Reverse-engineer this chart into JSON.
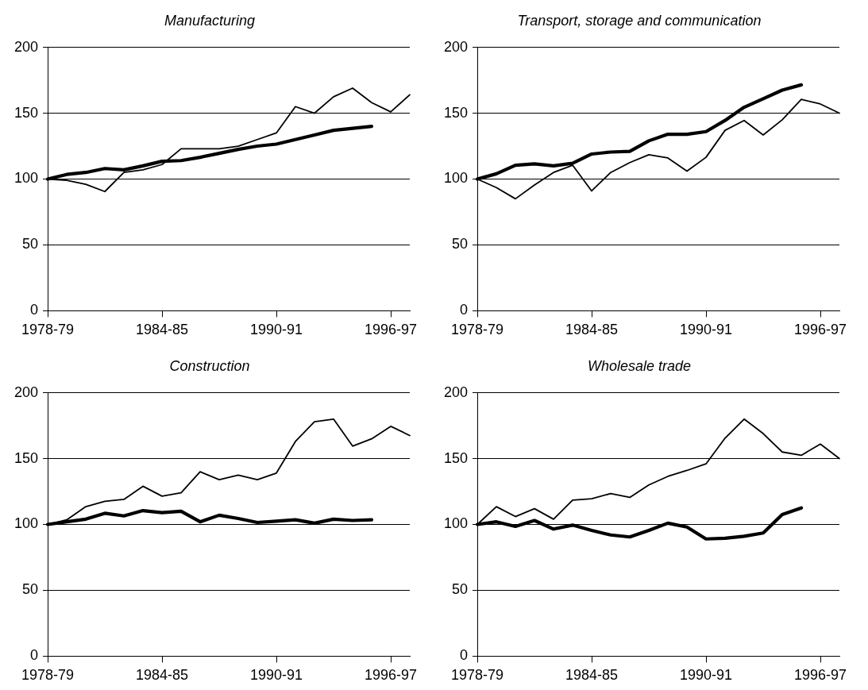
{
  "chart_data": [
    {
      "type": "line",
      "title": "Manufacturing",
      "categories": [
        "1978-79",
        null,
        null,
        null,
        null,
        null,
        "1984-85",
        null,
        null,
        null,
        null,
        null,
        "1990-91",
        null,
        null,
        null,
        null,
        null,
        "1996-97",
        null
      ],
      "ylim": [
        0,
        200
      ],
      "yticks": [
        0,
        50,
        100,
        150,
        200
      ],
      "grid": "y",
      "series": [
        {
          "color": "#000000",
          "values": [
            100,
            99,
            96,
            90.5,
            105,
            107,
            111,
            123,
            123,
            123,
            125,
            130,
            135,
            155,
            150,
            162.5,
            169,
            158,
            151,
            164
          ]
        },
        {
          "color": "#000000",
          "values": [
            100,
            103.5,
            105,
            108,
            107,
            110,
            113.5,
            114,
            116.5,
            119.5,
            122.5,
            125,
            126.5,
            130,
            133.5,
            137,
            138.5,
            140,
            null,
            null
          ]
        }
      ]
    },
    {
      "type": "line",
      "title": "Transport, storage and communication",
      "categories": [
        "1978-79",
        null,
        null,
        null,
        null,
        null,
        "1984-85",
        null,
        null,
        null,
        null,
        null,
        "1990-91",
        null,
        null,
        null,
        null,
        null,
        "1996-97",
        null
      ],
      "ylim": [
        0,
        200
      ],
      "yticks": [
        0,
        50,
        100,
        150,
        200
      ],
      "grid": "y",
      "series": [
        {
          "color": "#000000",
          "values": [
            100,
            93.5,
            85,
            95.5,
            105,
            110.5,
            91,
            105,
            112.5,
            118.5,
            116,
            106,
            116.5,
            137,
            144.5,
            133.5,
            145,
            160.5,
            157,
            150
          ]
        },
        {
          "color": "#000000",
          "values": [
            100,
            104,
            110.5,
            111.5,
            110,
            112,
            119,
            120.5,
            121,
            129,
            134,
            134,
            136,
            144.5,
            154.5,
            161,
            167.5,
            171.5,
            null,
            null
          ]
        }
      ]
    },
    {
      "type": "line",
      "title": "Construction",
      "categories": [
        "1978-79",
        null,
        null,
        null,
        null,
        null,
        "1984-85",
        null,
        null,
        null,
        null,
        null,
        "1990-91",
        null,
        null,
        null,
        null,
        null,
        "1996-97",
        null
      ],
      "ylim": [
        0,
        200
      ],
      "yticks": [
        0,
        50,
        100,
        150,
        200
      ],
      "grid": "y",
      "series": [
        {
          "color": "#000000",
          "values": [
            100,
            103.5,
            113.5,
            117.5,
            119,
            129,
            121.5,
            124,
            140,
            134,
            137.5,
            134,
            139,
            163,
            178,
            180,
            159.5,
            165,
            174.5,
            167.5
          ]
        },
        {
          "color": "#000000",
          "values": [
            100,
            102,
            104,
            108.5,
            106.5,
            110.5,
            109,
            110,
            102,
            107,
            104.5,
            101.5,
            102.5,
            103.5,
            101,
            104,
            103,
            103.5,
            null,
            null
          ]
        }
      ]
    },
    {
      "type": "line",
      "title": "Wholesale trade",
      "categories": [
        "1978-79",
        null,
        null,
        null,
        null,
        null,
        "1984-85",
        null,
        null,
        null,
        null,
        null,
        "1990-91",
        null,
        null,
        null,
        null,
        null,
        "1996-97",
        null
      ],
      "ylim": [
        0,
        200
      ],
      "yticks": [
        0,
        50,
        100,
        150,
        200
      ],
      "grid": "y",
      "series": [
        {
          "color": "#000000",
          "values": [
            100,
            113.5,
            106,
            112,
            104,
            118.5,
            119.5,
            123.5,
            120.5,
            130,
            136.5,
            141,
            146,
            165.5,
            180,
            169,
            155,
            152.5,
            161,
            150
          ]
        },
        {
          "color": "#000000",
          "values": [
            100,
            102,
            98.5,
            103,
            96.5,
            99.5,
            95.5,
            92,
            90.5,
            95.5,
            101,
            98,
            89,
            89.5,
            91,
            93.5,
            107.5,
            112.5,
            null,
            null
          ]
        }
      ]
    }
  ]
}
